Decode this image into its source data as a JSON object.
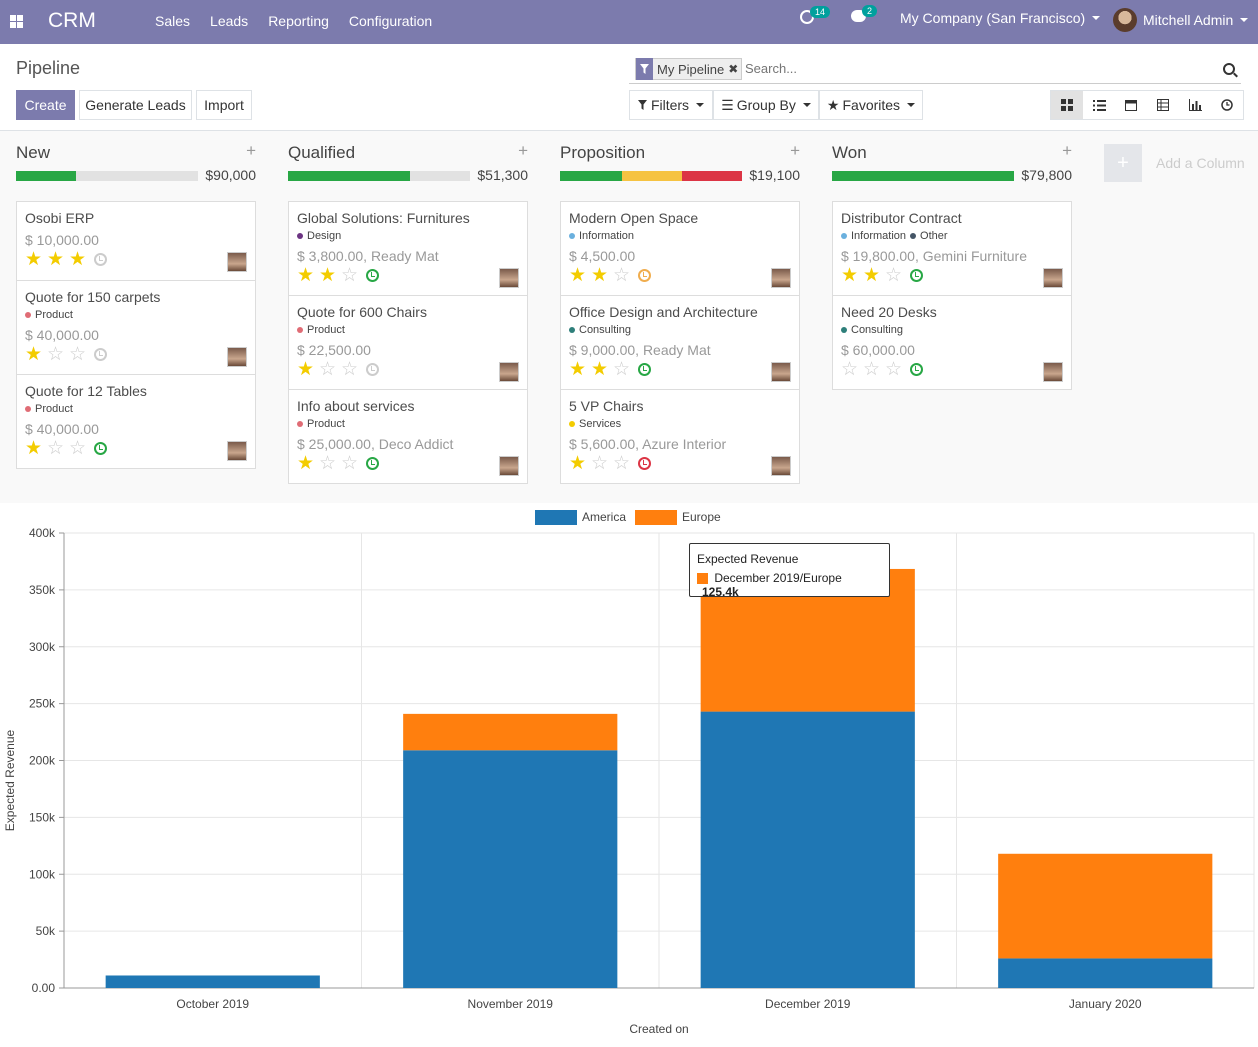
{
  "nav": {
    "brand": "CRM",
    "menu": [
      "Sales",
      "Leads",
      "Reporting",
      "Configuration"
    ],
    "activity_count": "14",
    "message_count": "2",
    "company": "My Company (San Francisco)",
    "user": "Mitchell Admin"
  },
  "control": {
    "title": "Pipeline",
    "create": "Create",
    "generate_leads": "Generate Leads",
    "import": "Import",
    "facet": "My Pipeline",
    "search_placeholder": "Search...",
    "filters": "Filters",
    "group_by": "Group By",
    "favorites": "Favorites",
    "views": [
      "kanban",
      "list",
      "calendar",
      "pivot",
      "graph",
      "activity"
    ]
  },
  "colors": {
    "primary": "#7c7bad",
    "green": "#28a745",
    "orange": "#f0ad4e",
    "red": "#dc3545",
    "star": "#f3cc00",
    "america": "#1f77b4",
    "europe": "#ff7f0e"
  },
  "columns": [
    {
      "title": "New",
      "total": "$90,000",
      "progress": [
        {
          "pct": 0.33,
          "color": "#28a745"
        }
      ],
      "cards": [
        {
          "title": "Osobi ERP",
          "tags": [],
          "revenue": "$ 10,000.00",
          "stars": 3,
          "activity": "none"
        },
        {
          "title": "Quote for 150 carpets",
          "tags": [
            {
              "name": "Product",
              "color": "#e06c75"
            }
          ],
          "revenue": "$ 40,000.00",
          "stars": 1,
          "activity": "none"
        },
        {
          "title": "Quote for 12 Tables",
          "tags": [
            {
              "name": "Product",
              "color": "#e06c75"
            }
          ],
          "revenue": "$ 40,000.00",
          "stars": 1,
          "activity": "planned"
        }
      ]
    },
    {
      "title": "Qualified",
      "total": "$51,300",
      "progress": [
        {
          "pct": 0.67,
          "color": "#28a745"
        }
      ],
      "cards": [
        {
          "title": "Global Solutions: Furnitures",
          "tags": [
            {
              "name": "Design",
              "color": "#6c3483"
            }
          ],
          "revenue": "$ 3,800.00, Ready Mat",
          "stars": 2,
          "activity": "planned"
        },
        {
          "title": "Quote for 600 Chairs",
          "tags": [
            {
              "name": "Product",
              "color": "#e06c75"
            }
          ],
          "revenue": "$ 22,500.00",
          "stars": 1,
          "activity": "none"
        },
        {
          "title": "Info about services",
          "tags": [
            {
              "name": "Product",
              "color": "#e06c75"
            }
          ],
          "revenue": "$ 25,000.00, Deco Addict",
          "stars": 1,
          "activity": "planned"
        }
      ]
    },
    {
      "title": "Proposition",
      "total": "$19,100",
      "progress": [
        {
          "pct": 0.34,
          "color": "#28a745"
        },
        {
          "pct": 0.33,
          "color": "#f6c342"
        },
        {
          "pct": 0.33,
          "color": "#dc3545"
        }
      ],
      "cards": [
        {
          "title": "Modern Open Space",
          "tags": [
            {
              "name": "Information",
              "color": "#6ab0de"
            }
          ],
          "revenue": "$ 4,500.00",
          "stars": 2,
          "activity": "today"
        },
        {
          "title": "Office Design and Architecture",
          "tags": [
            {
              "name": "Consulting",
              "color": "#2e7f7a"
            }
          ],
          "revenue": "$ 9,000.00, Ready Mat",
          "stars": 2,
          "activity": "planned"
        },
        {
          "title": "5 VP Chairs",
          "tags": [
            {
              "name": "Services",
              "color": "#f3cc00"
            }
          ],
          "revenue": "$ 5,600.00, Azure Interior",
          "stars": 1,
          "activity": "overdue"
        }
      ]
    },
    {
      "title": "Won",
      "total": "$79,800",
      "progress": [
        {
          "pct": 1.0,
          "color": "#28a745"
        }
      ],
      "cards": [
        {
          "title": "Distributor Contract",
          "tags": [
            {
              "name": "Information",
              "color": "#6ab0de"
            },
            {
              "name": "Other",
              "color": "#445566"
            }
          ],
          "revenue": "$ 19,800.00, Gemini Furniture",
          "stars": 2,
          "activity": "planned"
        },
        {
          "title": "Need 20 Desks",
          "tags": [
            {
              "name": "Consulting",
              "color": "#2e7f7a"
            }
          ],
          "revenue": "$ 60,000.00",
          "stars": 0,
          "activity": "planned"
        }
      ]
    }
  ],
  "add_column": "Add a Column",
  "chart_data": {
    "type": "bar",
    "stacked": true,
    "categories": [
      "October 2019",
      "November 2019",
      "December 2019",
      "January 2020"
    ],
    "series": [
      {
        "name": "America",
        "color": "#1f77b4",
        "values": [
          11000,
          209000,
          243000,
          26000
        ]
      },
      {
        "name": "Europe",
        "color": "#ff7f0e",
        "values": [
          0,
          32000,
          125400,
          92000
        ]
      }
    ],
    "xlabel": "Created on",
    "ylabel": "Expected Revenue",
    "ylim": [
      0,
      400000
    ],
    "yticks": [
      "0.00",
      "50k",
      "100k",
      "150k",
      "200k",
      "250k",
      "300k",
      "350k",
      "400k"
    ],
    "legend": "top-center",
    "grid": true,
    "tooltip": {
      "title": "Expected Revenue",
      "label": "December 2019/Europe",
      "value": "125.4k"
    }
  }
}
